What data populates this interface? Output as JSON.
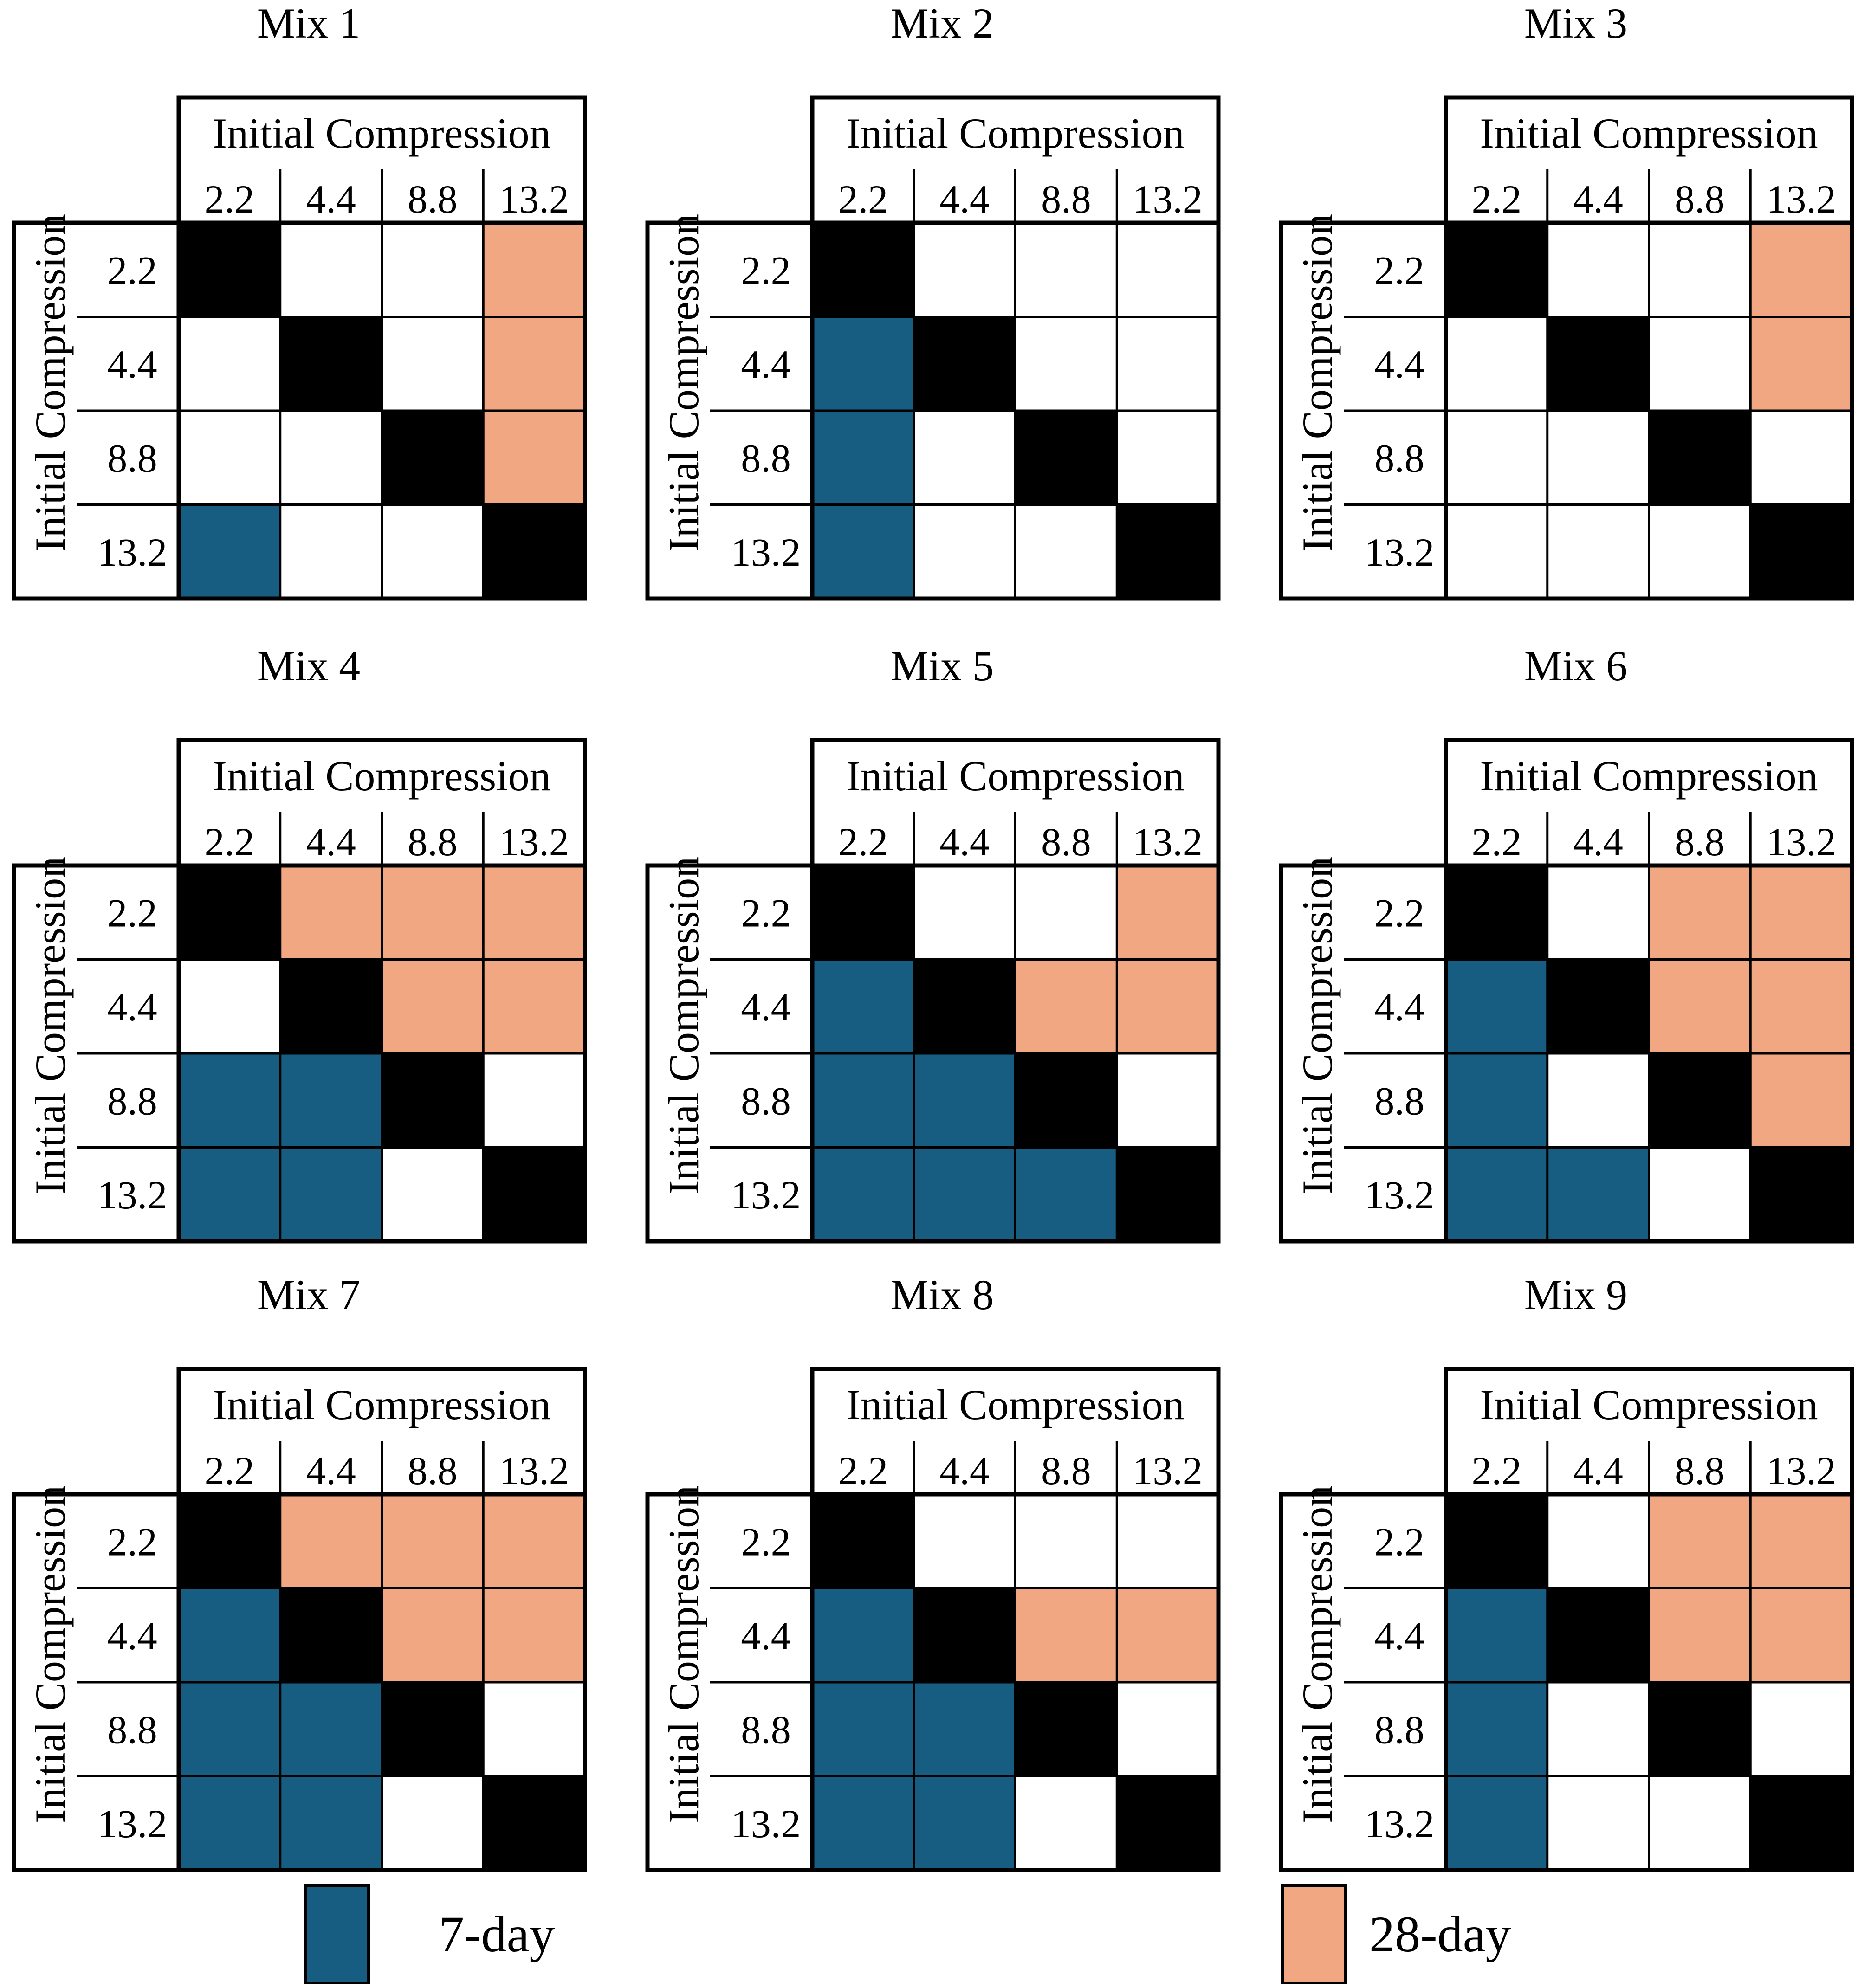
{
  "colors": {
    "seven_day": "#175d82",
    "twenty_eight_day": "#f0a782",
    "diagonal": "#000000",
    "none": "#ffffff"
  },
  "legend": {
    "seven_day_label": "7-day",
    "twenty_eight_day_label": "28-day"
  },
  "chart_data": {
    "type": "heatmap",
    "axis_label": "Initial Compression",
    "levels": [
      "2.2",
      "4.4",
      "8.8",
      "13.2"
    ],
    "cell_codes": {
      "D": "diagonal",
      "S": "7-day",
      "T": "28-day",
      "N": "none"
    },
    "panels": [
      {
        "title": "Mix 1",
        "grid": [
          [
            "D",
            "N",
            "N",
            "T"
          ],
          [
            "N",
            "D",
            "N",
            "T"
          ],
          [
            "N",
            "N",
            "D",
            "T"
          ],
          [
            "S",
            "N",
            "N",
            "D"
          ]
        ]
      },
      {
        "title": "Mix 2",
        "grid": [
          [
            "D",
            "N",
            "N",
            "N"
          ],
          [
            "S",
            "D",
            "N",
            "N"
          ],
          [
            "S",
            "N",
            "D",
            "N"
          ],
          [
            "S",
            "N",
            "N",
            "D"
          ]
        ]
      },
      {
        "title": "Mix 3",
        "grid": [
          [
            "D",
            "N",
            "N",
            "T"
          ],
          [
            "N",
            "D",
            "N",
            "T"
          ],
          [
            "N",
            "N",
            "D",
            "N"
          ],
          [
            "N",
            "N",
            "N",
            "D"
          ]
        ]
      },
      {
        "title": "Mix 4",
        "grid": [
          [
            "D",
            "T",
            "T",
            "T"
          ],
          [
            "N",
            "D",
            "T",
            "T"
          ],
          [
            "S",
            "S",
            "D",
            "N"
          ],
          [
            "S",
            "S",
            "N",
            "D"
          ]
        ]
      },
      {
        "title": "Mix 5",
        "grid": [
          [
            "D",
            "N",
            "N",
            "T"
          ],
          [
            "S",
            "D",
            "T",
            "T"
          ],
          [
            "S",
            "S",
            "D",
            "N"
          ],
          [
            "S",
            "S",
            "S",
            "D"
          ]
        ]
      },
      {
        "title": "Mix 6",
        "grid": [
          [
            "D",
            "N",
            "T",
            "T"
          ],
          [
            "S",
            "D",
            "T",
            "T"
          ],
          [
            "S",
            "N",
            "D",
            "T"
          ],
          [
            "S",
            "S",
            "N",
            "D"
          ]
        ]
      },
      {
        "title": "Mix 7",
        "grid": [
          [
            "D",
            "T",
            "T",
            "T"
          ],
          [
            "S",
            "D",
            "T",
            "T"
          ],
          [
            "S",
            "S",
            "D",
            "N"
          ],
          [
            "S",
            "S",
            "N",
            "D"
          ]
        ]
      },
      {
        "title": "Mix 8",
        "grid": [
          [
            "D",
            "N",
            "N",
            "N"
          ],
          [
            "S",
            "D",
            "T",
            "T"
          ],
          [
            "S",
            "S",
            "D",
            "N"
          ],
          [
            "S",
            "S",
            "N",
            "D"
          ]
        ]
      },
      {
        "title": "Mix 9",
        "grid": [
          [
            "D",
            "N",
            "T",
            "T"
          ],
          [
            "S",
            "D",
            "T",
            "T"
          ],
          [
            "S",
            "N",
            "D",
            "N"
          ],
          [
            "S",
            "N",
            "N",
            "D"
          ]
        ]
      }
    ]
  }
}
